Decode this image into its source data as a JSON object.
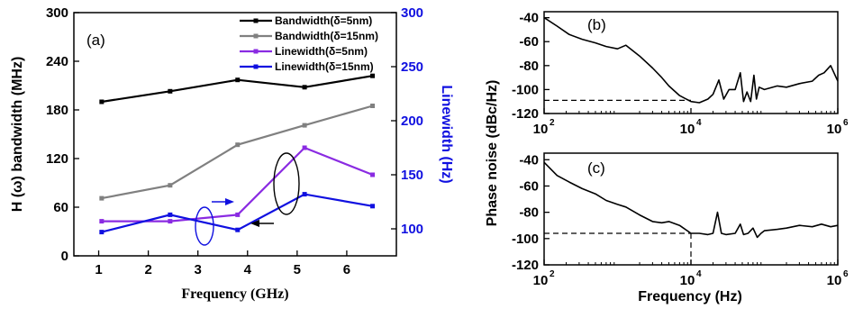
{
  "colors": {
    "black": "#000000",
    "gray": "#808080",
    "purple": "#8a2be2",
    "blue": "#1010e0"
  },
  "chart_data": [
    {
      "type": "line",
      "panel_label": "(a)",
      "xlabel": "Frequency (GHz)",
      "ylabel": "H (ω) bandwidth (MHz)",
      "y2label": "Linewidth (Hz)",
      "xlim": [
        0.5,
        7
      ],
      "ylim": [
        0,
        300
      ],
      "y2lim": [
        75,
        300
      ],
      "xticks": [
        "1",
        "2",
        "3",
        "4",
        "5",
        "6"
      ],
      "yticks": [
        "0",
        "60",
        "120",
        "180",
        "240",
        "300"
      ],
      "y2ticks": [
        "100",
        "150",
        "200",
        "250",
        "300"
      ],
      "x": [
        1.06,
        2.44,
        3.8,
        5.15,
        6.52
      ],
      "series": [
        {
          "name": "Bandwidth(δ=5nm)",
          "axis": "left",
          "color": "#000000",
          "values": [
            190,
            203,
            217,
            208,
            222
          ]
        },
        {
          "name": "Bandwidth(δ=15nm)",
          "axis": "left",
          "color": "#808080",
          "values": [
            71,
            87,
            137,
            161,
            185
          ]
        },
        {
          "name": "Linewidth(δ=5nm)",
          "axis": "right",
          "color": "#8a2be2",
          "values": [
            107,
            107,
            113,
            175,
            150
          ]
        },
        {
          "name": "Linewidth(δ=15nm)",
          "axis": "right",
          "color": "#1010e0",
          "values": [
            97,
            113,
            99,
            132,
            121
          ]
        }
      ],
      "legend_position": "top-right"
    },
    {
      "type": "line",
      "panel_label": "(b)",
      "xscale": "log",
      "xlim": [
        100,
        1000000
      ],
      "ylim": [
        -120,
        -35
      ],
      "xticks": [
        {
          "base": "10",
          "exp": "2"
        },
        {
          "base": "10",
          "exp": "4"
        },
        {
          "base": "10",
          "exp": "6"
        }
      ],
      "yticks": [
        "-120",
        "-100",
        "-80",
        "-60",
        "-40"
      ],
      "reference_level": -109,
      "series": [
        {
          "color": "#000000",
          "x": [
            100,
            150,
            220,
            330,
            500,
            700,
            1000,
            1300,
            2000,
            3000,
            4000,
            5000,
            7000,
            10000,
            13000,
            17000,
            20000,
            24000,
            28000,
            33000,
            40000,
            47000,
            52000,
            58000,
            65000,
            72000,
            78000,
            85000,
            100000,
            150000,
            200000,
            300000,
            450000,
            550000,
            650000,
            800000,
            1000000
          ],
          "values": [
            -40,
            -47,
            -54,
            -58,
            -61,
            -64,
            -66,
            -63,
            -72,
            -82,
            -90,
            -97,
            -105,
            -110,
            -111,
            -108,
            -104,
            -92,
            -108,
            -100,
            -100,
            -86,
            -110,
            -102,
            -110,
            -88,
            -108,
            -98,
            -100,
            -97,
            -98,
            -95,
            -93,
            -88,
            -86,
            -80,
            -93
          ]
        }
      ]
    },
    {
      "type": "line",
      "panel_label": "(c)",
      "xlabel": "Frequency (Hz)",
      "ylabel": "Phase noise (dBc/Hz)",
      "xscale": "log",
      "xlim": [
        100,
        1000000
      ],
      "ylim": [
        -120,
        -35
      ],
      "xticks": [
        {
          "base": "10",
          "exp": "2"
        },
        {
          "base": "10",
          "exp": "4"
        },
        {
          "base": "10",
          "exp": "6"
        }
      ],
      "yticks": [
        "-120",
        "-100",
        "-80",
        "-60",
        "-40"
      ],
      "reference_level": -96,
      "reference_x": 10000,
      "series": [
        {
          "color": "#000000",
          "x": [
            100,
            150,
            220,
            330,
            500,
            700,
            1000,
            1300,
            2000,
            3000,
            4000,
            5000,
            7000,
            10000,
            13000,
            17000,
            20000,
            23000,
            26000,
            30000,
            40000,
            47000,
            52000,
            60000,
            70000,
            80000,
            90000,
            100000,
            150000,
            200000,
            300000,
            450000,
            600000,
            800000,
            1000000
          ],
          "values": [
            -42,
            -52,
            -57,
            -62,
            -66,
            -71,
            -74,
            -76,
            -82,
            -87,
            -88,
            -87,
            -90,
            -96,
            -96,
            -97,
            -96,
            -80,
            -96,
            -97,
            -96,
            -89,
            -97,
            -96,
            -92,
            -99,
            -96,
            -94,
            -93,
            -92,
            -90,
            -91,
            -89,
            -91,
            -90
          ]
        }
      ]
    }
  ]
}
